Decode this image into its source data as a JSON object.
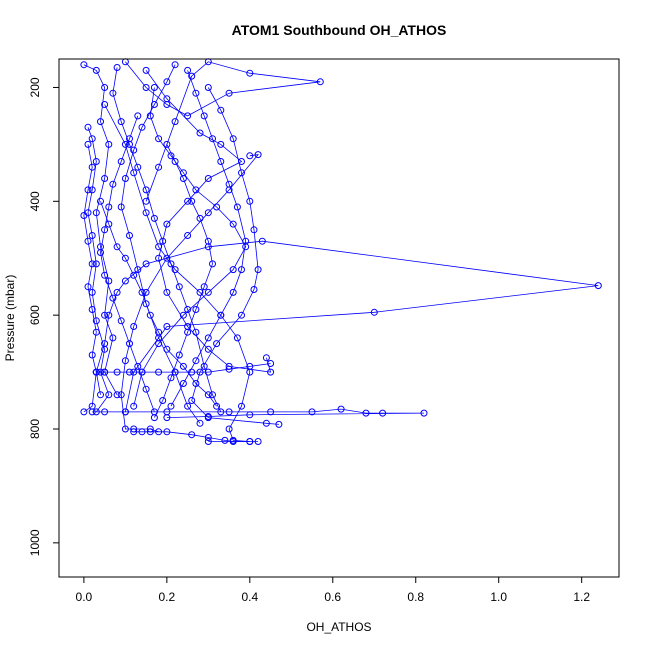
{
  "chart_data": {
    "type": "scatter",
    "title": "ATOM1 Southbound OH_ATHOS",
    "xlabel": "OH_ATHOS",
    "ylabel": "Pressure (mbar)",
    "xlim": [
      -0.06,
      1.29
    ],
    "ylim": [
      1060,
      150
    ],
    "y_reversed": true,
    "x_ticks": [
      0.0,
      0.2,
      0.4,
      0.6,
      0.8,
      1.0,
      1.2
    ],
    "x_tick_labels": [
      "0.0",
      "0.2",
      "0.4",
      "0.6",
      "0.8",
      "1.0",
      "1.2"
    ],
    "y_ticks": [
      200,
      400,
      600,
      800,
      1000
    ],
    "y_tick_labels": [
      "200",
      "400",
      "600",
      "800",
      "1000"
    ],
    "grid": false,
    "legend": "none",
    "series_color": "#0000ff",
    "marker": "open-circle",
    "connected": true,
    "series": [
      {
        "values": [
          [
            0.0,
            770
          ],
          [
            0.02,
            760
          ],
          [
            0.03,
            700
          ],
          [
            0.05,
            650
          ],
          [
            0.06,
            600
          ],
          [
            0.08,
            560
          ],
          [
            0.1,
            540
          ],
          [
            0.15,
            510
          ],
          [
            0.3,
            480
          ],
          [
            0.43,
            470
          ],
          [
            1.24,
            548
          ],
          [
            0.7,
            595
          ],
          [
            0.2,
            620
          ],
          [
            0.12,
            700
          ],
          [
            0.1,
            770
          ]
        ]
      },
      {
        "values": [
          [
            0.02,
            770
          ],
          [
            0.05,
            770
          ],
          [
            0.1,
            770
          ],
          [
            0.2,
            770
          ],
          [
            0.35,
            770
          ],
          [
            0.45,
            770
          ],
          [
            0.55,
            770
          ],
          [
            0.62,
            765
          ],
          [
            0.68,
            772
          ],
          [
            0.72,
            772
          ],
          [
            0.82,
            772
          ],
          [
            0.4,
            775
          ],
          [
            0.3,
            778
          ],
          [
            0.2,
            780
          ]
        ]
      },
      {
        "values": [
          [
            0.0,
            160
          ],
          [
            0.03,
            170
          ],
          [
            0.05,
            200
          ],
          [
            0.04,
            260
          ],
          [
            0.06,
            300
          ],
          [
            0.05,
            360
          ],
          [
            0.03,
            420
          ],
          [
            0.04,
            480
          ],
          [
            0.06,
            540
          ],
          [
            0.05,
            600
          ],
          [
            0.07,
            640
          ],
          [
            0.05,
            700
          ],
          [
            0.08,
            740
          ]
        ]
      },
      {
        "values": [
          [
            0.1,
            155
          ],
          [
            0.15,
            200
          ],
          [
            0.2,
            230
          ],
          [
            0.25,
            250
          ],
          [
            0.35,
            210
          ],
          [
            0.57,
            190
          ],
          [
            0.4,
            175
          ],
          [
            0.3,
            155
          ],
          [
            0.26,
            180
          ],
          [
            0.22,
            260
          ],
          [
            0.18,
            340
          ],
          [
            0.15,
            400
          ]
        ]
      },
      {
        "values": [
          [
            0.05,
            230
          ],
          [
            0.1,
            300
          ],
          [
            0.12,
            350
          ],
          [
            0.15,
            420
          ],
          [
            0.18,
            480
          ],
          [
            0.22,
            520
          ],
          [
            0.28,
            560
          ],
          [
            0.33,
            600
          ],
          [
            0.37,
            640
          ],
          [
            0.4,
            700
          ],
          [
            0.38,
            760
          ],
          [
            0.35,
            800
          ],
          [
            0.36,
            820
          ],
          [
            0.4,
            822
          ],
          [
            0.3,
            822
          ]
        ]
      },
      {
        "values": [
          [
            0.4,
            320
          ],
          [
            0.42,
            318
          ],
          [
            0.35,
            380
          ],
          [
            0.3,
            420
          ],
          [
            0.25,
            460
          ],
          [
            0.2,
            500
          ],
          [
            0.15,
            560
          ],
          [
            0.12,
            620
          ],
          [
            0.1,
            680
          ],
          [
            0.09,
            740
          ],
          [
            0.1,
            800
          ],
          [
            0.12,
            800
          ],
          [
            0.16,
            800
          ],
          [
            0.18,
            805
          ]
        ]
      },
      {
        "values": [
          [
            0.15,
            170
          ],
          [
            0.2,
            220
          ],
          [
            0.28,
            280
          ],
          [
            0.33,
            300
          ],
          [
            0.38,
            330
          ],
          [
            0.3,
            360
          ],
          [
            0.25,
            400
          ],
          [
            0.2,
            440
          ],
          [
            0.18,
            500
          ],
          [
            0.2,
            560
          ],
          [
            0.25,
            620
          ],
          [
            0.3,
            660
          ],
          [
            0.35,
            690
          ],
          [
            0.45,
            700
          ],
          [
            0.44,
            675
          ]
        ]
      },
      {
        "values": [
          [
            0.01,
            270
          ],
          [
            0.02,
            290
          ],
          [
            0.03,
            330
          ],
          [
            0.02,
            380
          ],
          [
            0.01,
            420
          ],
          [
            0.02,
            460
          ],
          [
            0.03,
            510
          ],
          [
            0.02,
            560
          ],
          [
            0.03,
            610
          ],
          [
            0.05,
            660
          ],
          [
            0.04,
            700
          ],
          [
            0.06,
            740
          ],
          [
            0.03,
            770
          ]
        ]
      },
      {
        "values": [
          [
            0.22,
            160
          ],
          [
            0.2,
            190
          ],
          [
            0.17,
            230
          ],
          [
            0.14,
            270
          ],
          [
            0.12,
            310
          ],
          [
            0.1,
            360
          ],
          [
            0.09,
            410
          ],
          [
            0.11,
            460
          ],
          [
            0.13,
            520
          ],
          [
            0.15,
            580
          ],
          [
            0.18,
            640
          ],
          [
            0.22,
            700
          ],
          [
            0.25,
            760
          ],
          [
            0.28,
            790
          ]
        ]
      },
      {
        "values": [
          [
            0.3,
            200
          ],
          [
            0.33,
            240
          ],
          [
            0.36,
            290
          ],
          [
            0.38,
            350
          ],
          [
            0.4,
            400
          ],
          [
            0.41,
            450
          ],
          [
            0.42,
            520
          ],
          [
            0.41,
            555
          ],
          [
            0.38,
            600
          ],
          [
            0.32,
            650
          ],
          [
            0.28,
            700
          ],
          [
            0.26,
            750
          ],
          [
            0.3,
            780
          ],
          [
            0.44,
            790
          ],
          [
            0.47,
            792
          ]
        ]
      },
      {
        "values": [
          [
            0.08,
            165
          ],
          [
            0.07,
            210
          ],
          [
            0.09,
            260
          ],
          [
            0.11,
            300
          ],
          [
            0.13,
            340
          ],
          [
            0.15,
            380
          ],
          [
            0.17,
            430
          ],
          [
            0.19,
            470
          ],
          [
            0.21,
            510
          ],
          [
            0.23,
            550
          ],
          [
            0.25,
            590
          ],
          [
            0.27,
            630
          ],
          [
            0.29,
            690
          ],
          [
            0.31,
            740
          ],
          [
            0.33,
            770
          ]
        ]
      },
      {
        "values": [
          [
            0.17,
            200
          ],
          [
            0.16,
            250
          ],
          [
            0.18,
            290
          ],
          [
            0.21,
            320
          ],
          [
            0.24,
            350
          ],
          [
            0.27,
            380
          ],
          [
            0.32,
            410
          ],
          [
            0.36,
            440
          ],
          [
            0.39,
            480
          ],
          [
            0.36,
            520
          ],
          [
            0.3,
            560
          ],
          [
            0.24,
            600
          ],
          [
            0.18,
            650
          ],
          [
            0.14,
            700
          ],
          [
            0.12,
            760
          ]
        ]
      },
      {
        "values": [
          [
            0.03,
            700
          ],
          [
            0.05,
            700
          ],
          [
            0.08,
            700
          ],
          [
            0.11,
            700
          ],
          [
            0.14,
            700
          ],
          [
            0.18,
            700
          ],
          [
            0.22,
            700
          ],
          [
            0.26,
            700
          ],
          [
            0.3,
            700
          ],
          [
            0.35,
            695
          ],
          [
            0.4,
            690
          ],
          [
            0.45,
            685
          ]
        ]
      },
      {
        "values": [
          [
            0.12,
            805
          ],
          [
            0.14,
            805
          ],
          [
            0.16,
            805
          ],
          [
            0.2,
            805
          ],
          [
            0.26,
            810
          ],
          [
            0.3,
            815
          ],
          [
            0.34,
            820
          ],
          [
            0.36,
            822
          ],
          [
            0.4,
            822
          ],
          [
            0.42,
            822
          ]
        ]
      },
      {
        "values": [
          [
            0.04,
            400
          ],
          [
            0.06,
            440
          ],
          [
            0.08,
            480
          ],
          [
            0.1,
            500
          ],
          [
            0.12,
            530
          ],
          [
            0.14,
            560
          ],
          [
            0.16,
            600
          ],
          [
            0.18,
            630
          ],
          [
            0.2,
            660
          ],
          [
            0.24,
            690
          ],
          [
            0.27,
            720
          ],
          [
            0.3,
            740
          ],
          [
            0.32,
            760
          ]
        ]
      },
      {
        "values": [
          [
            0.25,
            170
          ],
          [
            0.27,
            210
          ],
          [
            0.29,
            250
          ],
          [
            0.31,
            290
          ],
          [
            0.33,
            330
          ],
          [
            0.35,
            370
          ],
          [
            0.37,
            410
          ],
          [
            0.39,
            470
          ],
          [
            0.38,
            520
          ],
          [
            0.36,
            560
          ],
          [
            0.33,
            600
          ],
          [
            0.3,
            640
          ],
          [
            0.27,
            680
          ],
          [
            0.24,
            720
          ],
          [
            0.21,
            760
          ]
        ]
      },
      {
        "values": [
          [
            0.13,
            250
          ],
          [
            0.11,
            290
          ],
          [
            0.09,
            330
          ],
          [
            0.07,
            370
          ],
          [
            0.06,
            410
          ],
          [
            0.05,
            450
          ],
          [
            0.04,
            490
          ],
          [
            0.05,
            530
          ],
          [
            0.07,
            570
          ],
          [
            0.09,
            610
          ],
          [
            0.11,
            650
          ],
          [
            0.13,
            690
          ],
          [
            0.15,
            730
          ],
          [
            0.17,
            770
          ]
        ]
      },
      {
        "values": [
          [
            0.2,
            300
          ],
          [
            0.22,
            330
          ],
          [
            0.24,
            360
          ],
          [
            0.26,
            400
          ],
          [
            0.28,
            430
          ],
          [
            0.3,
            470
          ],
          [
            0.31,
            510
          ],
          [
            0.29,
            550
          ],
          [
            0.27,
            590
          ],
          [
            0.25,
            630
          ],
          [
            0.23,
            670
          ],
          [
            0.21,
            710
          ],
          [
            0.19,
            750
          ],
          [
            0.17,
            780
          ]
        ]
      },
      {
        "values": [
          [
            0.01,
            300
          ],
          [
            0.02,
            340
          ],
          [
            0.01,
            380
          ],
          [
            0.0,
            425
          ],
          [
            0.01,
            470
          ],
          [
            0.02,
            510
          ],
          [
            0.01,
            550
          ],
          [
            0.02,
            590
          ],
          [
            0.03,
            630
          ],
          [
            0.02,
            670
          ],
          [
            0.03,
            700
          ],
          [
            0.04,
            740
          ]
        ]
      }
    ]
  }
}
